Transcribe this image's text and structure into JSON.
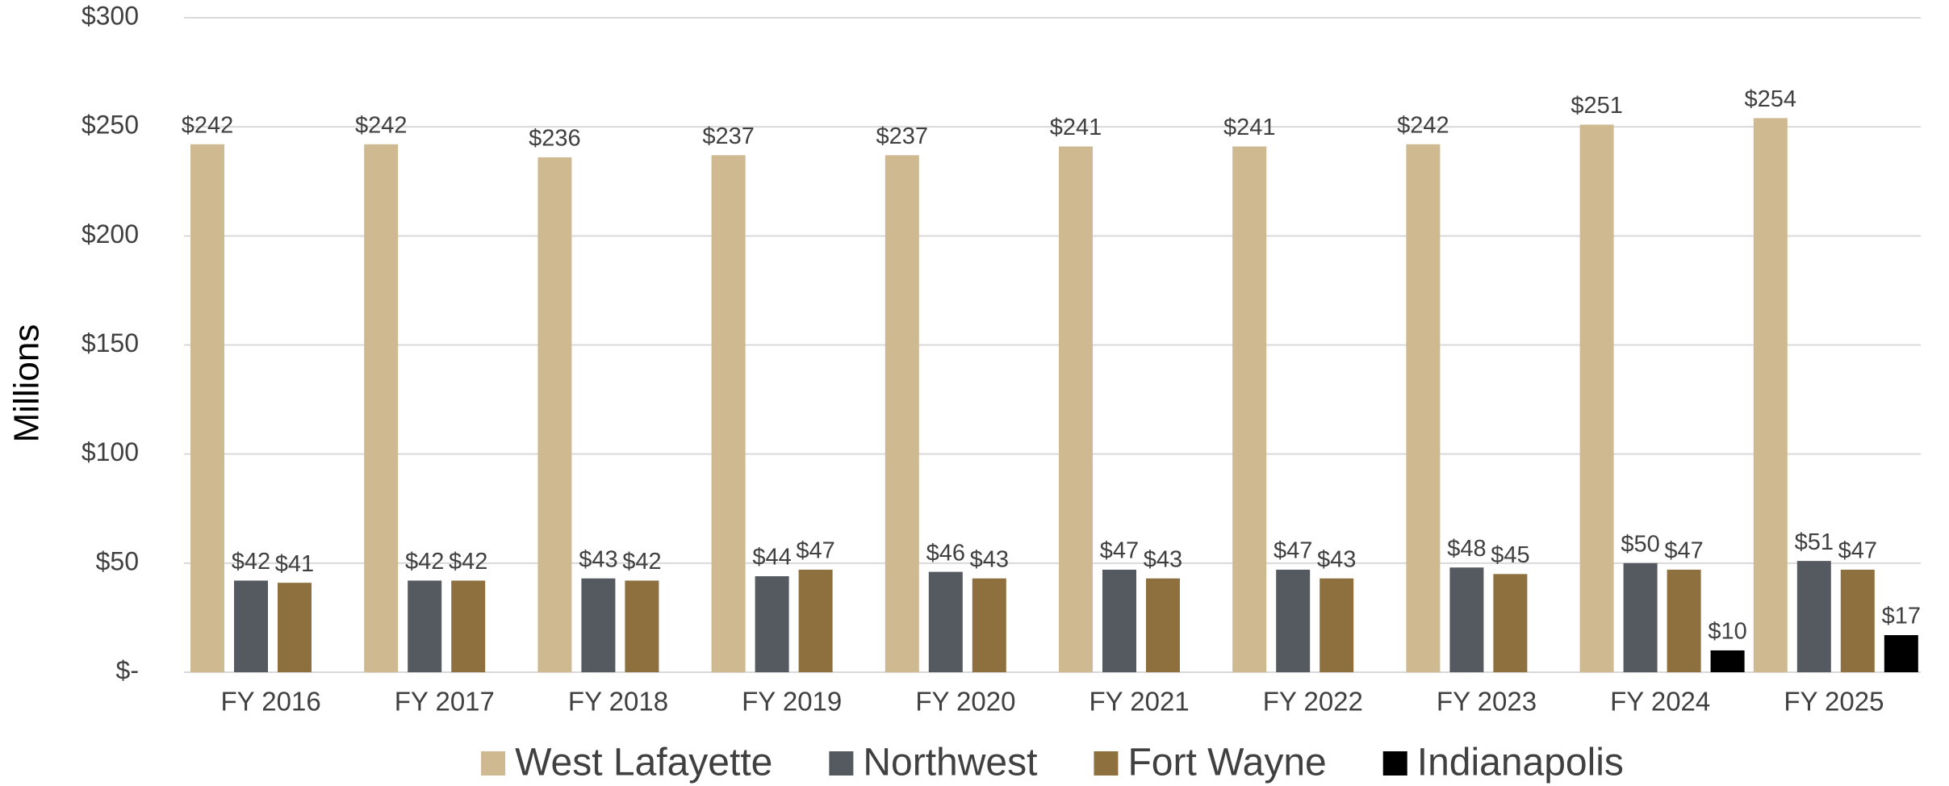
{
  "chart_data": {
    "type": "bar",
    "y_label": "Millions",
    "categories": [
      "FY 2016",
      "FY 2017",
      "FY 2018",
      "FY 2019",
      "FY 2020",
      "FY 2021",
      "FY 2022",
      "FY 2023",
      "FY 2024",
      "FY 2025"
    ],
    "series": [
      {
        "name": "West Lafayette",
        "color": "#cfb991",
        "values": [
          242,
          242,
          236,
          237,
          237,
          241,
          241,
          242,
          251,
          254
        ],
        "value_labels": [
          "$242",
          "$242",
          "$236",
          "$237",
          "$237",
          "$241",
          "$241",
          "$242",
          "$251",
          "$254"
        ]
      },
      {
        "name": "Northwest",
        "color": "#555960",
        "values": [
          42,
          42,
          43,
          44,
          46,
          47,
          47,
          48,
          50,
          51
        ],
        "value_labels": [
          "$42",
          "$42",
          "$43",
          "$44",
          "$46",
          "$47",
          "$47",
          "$48",
          "$50",
          "$51"
        ]
      },
      {
        "name": "Fort Wayne",
        "color": "#8e6f3e",
        "values": [
          41,
          42,
          42,
          47,
          43,
          43,
          43,
          45,
          47,
          47
        ],
        "value_labels": [
          "$41",
          "$42",
          "$42",
          "$47",
          "$43",
          "$43",
          "$43",
          "$45",
          "$47",
          "$47"
        ]
      },
      {
        "name": "Indianapolis",
        "color": "#000000",
        "values": [
          null,
          null,
          null,
          null,
          null,
          null,
          null,
          null,
          10,
          17
        ],
        "value_labels": [
          null,
          null,
          null,
          null,
          null,
          null,
          null,
          null,
          "$10",
          "$17"
        ]
      }
    ],
    "ylim": [
      0,
      300
    ],
    "yticks": [
      {
        "value": 0,
        "label": "$-"
      },
      {
        "value": 50,
        "label": "$50"
      },
      {
        "value": 100,
        "label": "$100"
      },
      {
        "value": 150,
        "label": "$150"
      },
      {
        "value": 200,
        "label": "$200"
      },
      {
        "value": 250,
        "label": "$250"
      },
      {
        "value": 300,
        "label": "$300"
      }
    ],
    "grid": true,
    "legend": "bottom"
  }
}
